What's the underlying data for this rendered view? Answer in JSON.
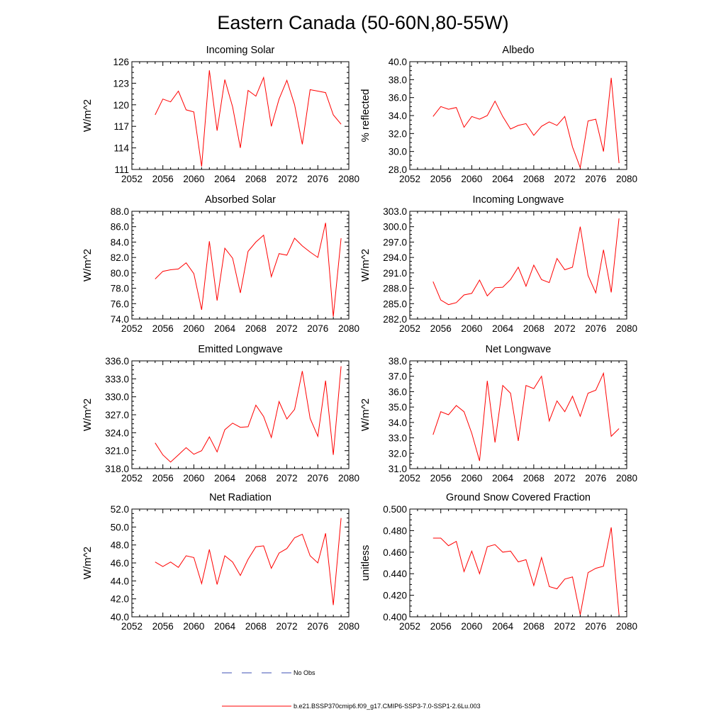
{
  "figure": {
    "title": "Eastern Canada (50-60N,80-55W)"
  },
  "colors": {
    "series": "#ff0000",
    "no_obs": "#3f51b5",
    "axis": "#000000"
  },
  "legend": {
    "entries": [
      {
        "label": "No Obs",
        "style": "dashed",
        "color": "#3f51b5"
      },
      {
        "label": "b.e21.BSSP370cmip6.f09_g17.CMIP6-SSP3-7.0-SSP1-2.6Lu.003",
        "style": "solid",
        "color": "#ff0000"
      }
    ]
  },
  "chart_data": [
    {
      "type": "line",
      "title": "Incoming Solar",
      "ylabel": "W/m^2",
      "xlim": [
        2052,
        2080
      ],
      "ylim": [
        111,
        126
      ],
      "x_ticks": [
        2052,
        2056,
        2060,
        2064,
        2068,
        2072,
        2076,
        2080
      ],
      "x_tick_labels": [
        "2052",
        "2056",
        "2060",
        "2064",
        "2068",
        "2072",
        "2076",
        "2080"
      ],
      "y_ticks": [
        111,
        114,
        117,
        120,
        123,
        126
      ],
      "y_tick_labels": [
        "111",
        "114",
        "117",
        "120",
        "123",
        "126"
      ],
      "grid": false,
      "x": [
        2055,
        2056,
        2057,
        2058,
        2059,
        2060,
        2061,
        2062,
        2063,
        2064,
        2065,
        2066,
        2067,
        2068,
        2069,
        2070,
        2071,
        2072,
        2073,
        2074,
        2075,
        2076,
        2077,
        2078,
        2079
      ],
      "series": [
        {
          "values": [
            118.6,
            120.8,
            120.4,
            121.9,
            119.3,
            119.0,
            111.4,
            124.8,
            116.4,
            123.5,
            119.7,
            114.0,
            122.0,
            121.2,
            123.8,
            117.0,
            120.8,
            123.4,
            120.0,
            114.5,
            122.1,
            121.9,
            121.7,
            118.6,
            117.3
          ]
        }
      ]
    },
    {
      "type": "line",
      "title": "Albedo",
      "ylabel": "% reflected",
      "xlim": [
        2052,
        2080
      ],
      "ylim": [
        28.0,
        40.0
      ],
      "x_ticks": [
        2052,
        2056,
        2060,
        2064,
        2068,
        2072,
        2076,
        2080
      ],
      "x_tick_labels": [
        "2052",
        "2056",
        "2060",
        "2064",
        "2068",
        "2072",
        "2076",
        "2080"
      ],
      "y_ticks": [
        28,
        30,
        32,
        34,
        36,
        38,
        40
      ],
      "y_tick_labels": [
        "28.0",
        "30.0",
        "32.0",
        "34.0",
        "36.0",
        "38.0",
        "40.0"
      ],
      "grid": false,
      "x": [
        2055,
        2056,
        2057,
        2058,
        2059,
        2060,
        2061,
        2062,
        2063,
        2064,
        2065,
        2066,
        2067,
        2068,
        2069,
        2070,
        2071,
        2072,
        2073,
        2074,
        2075,
        2076,
        2077,
        2078,
        2079
      ],
      "series": [
        {
          "values": [
            33.9,
            35.0,
            34.7,
            34.9,
            32.7,
            33.9,
            33.6,
            34.0,
            35.6,
            33.9,
            32.5,
            32.9,
            33.1,
            31.8,
            32.8,
            33.3,
            32.9,
            33.9,
            30.5,
            28.2,
            33.4,
            33.6,
            30.0,
            38.2,
            28.7
          ]
        }
      ]
    },
    {
      "type": "line",
      "title": "Absorbed Solar",
      "ylabel": "W/m^2",
      "xlim": [
        2052,
        2080
      ],
      "ylim": [
        74.0,
        88.0
      ],
      "x_ticks": [
        2052,
        2056,
        2060,
        2064,
        2068,
        2072,
        2076,
        2080
      ],
      "x_tick_labels": [
        "2052",
        "2056",
        "2060",
        "2064",
        "2068",
        "2072",
        "2076",
        "2080"
      ],
      "y_ticks": [
        74,
        76,
        78,
        80,
        82,
        84,
        86,
        88
      ],
      "y_tick_labels": [
        "74.0",
        "76.0",
        "78.0",
        "80.0",
        "82.0",
        "84.0",
        "86.0",
        "88.0"
      ],
      "grid": false,
      "x": [
        2055,
        2056,
        2057,
        2058,
        2059,
        2060,
        2061,
        2062,
        2063,
        2064,
        2065,
        2066,
        2067,
        2068,
        2069,
        2070,
        2071,
        2072,
        2073,
        2074,
        2075,
        2076,
        2077,
        2078,
        2079
      ],
      "series": [
        {
          "values": [
            79.2,
            80.2,
            80.4,
            80.5,
            81.3,
            79.9,
            75.2,
            84.1,
            76.4,
            83.2,
            81.9,
            77.4,
            82.8,
            84.0,
            84.9,
            79.5,
            82.5,
            82.3,
            84.5,
            83.5,
            82.7,
            82.0,
            86.5,
            74.3,
            84.5
          ]
        }
      ]
    },
    {
      "type": "line",
      "title": "Incoming Longwave",
      "ylabel": "W/m^2",
      "xlim": [
        2052,
        2080
      ],
      "ylim": [
        282.0,
        303.0
      ],
      "x_ticks": [
        2052,
        2056,
        2060,
        2064,
        2068,
        2072,
        2076,
        2080
      ],
      "x_tick_labels": [
        "2052",
        "2056",
        "2060",
        "2064",
        "2068",
        "2072",
        "2076",
        "2080"
      ],
      "y_ticks": [
        282,
        285,
        288,
        291,
        294,
        297,
        300,
        303
      ],
      "y_tick_labels": [
        "282.0",
        "285.0",
        "288.0",
        "291.0",
        "294.0",
        "297.0",
        "300.0",
        "303.0"
      ],
      "grid": false,
      "x": [
        2055,
        2056,
        2057,
        2058,
        2059,
        2060,
        2061,
        2062,
        2063,
        2064,
        2065,
        2066,
        2067,
        2068,
        2069,
        2070,
        2071,
        2072,
        2073,
        2074,
        2075,
        2076,
        2077,
        2078,
        2079
      ],
      "series": [
        {
          "values": [
            289.3,
            285.7,
            284.8,
            285.2,
            286.7,
            287.0,
            289.6,
            286.5,
            288.1,
            288.2,
            289.7,
            292.1,
            288.4,
            292.5,
            289.7,
            289.1,
            293.8,
            291.6,
            292.1,
            300.0,
            290.5,
            287.1,
            295.5,
            287.2,
            301.6
          ]
        }
      ]
    },
    {
      "type": "line",
      "title": "Emitted Longwave",
      "ylabel": "W/m^2",
      "xlim": [
        2052,
        2080
      ],
      "ylim": [
        318.0,
        336.0
      ],
      "x_ticks": [
        2052,
        2056,
        2060,
        2064,
        2068,
        2072,
        2076,
        2080
      ],
      "x_tick_labels": [
        "2052",
        "2056",
        "2060",
        "2064",
        "2068",
        "2072",
        "2076",
        "2080"
      ],
      "y_ticks": [
        318,
        321,
        324,
        327,
        330,
        333,
        336
      ],
      "y_tick_labels": [
        "318.0",
        "321.0",
        "324.0",
        "327.0",
        "330.0",
        "333.0",
        "336.0"
      ],
      "grid": false,
      "x": [
        2055,
        2056,
        2057,
        2058,
        2059,
        2060,
        2061,
        2062,
        2063,
        2064,
        2065,
        2066,
        2067,
        2068,
        2069,
        2070,
        2071,
        2072,
        2073,
        2074,
        2075,
        2076,
        2077,
        2078,
        2079
      ],
      "series": [
        {
          "values": [
            322.3,
            320.3,
            319.1,
            320.3,
            321.5,
            320.4,
            321.0,
            323.3,
            320.8,
            324.5,
            325.6,
            324.9,
            325.0,
            328.6,
            326.7,
            323.2,
            329.2,
            326.3,
            327.9,
            334.3,
            326.4,
            323.4,
            332.7,
            320.3,
            335.1
          ]
        }
      ]
    },
    {
      "type": "line",
      "title": "Net Longwave",
      "ylabel": "W/m^2",
      "xlim": [
        2052,
        2080
      ],
      "ylim": [
        31.0,
        38.0
      ],
      "x_ticks": [
        2052,
        2056,
        2060,
        2064,
        2068,
        2072,
        2076,
        2080
      ],
      "x_tick_labels": [
        "2052",
        "2056",
        "2060",
        "2064",
        "2068",
        "2072",
        "2076",
        "2080"
      ],
      "y_ticks": [
        31,
        32,
        33,
        34,
        35,
        36,
        37,
        38
      ],
      "y_tick_labels": [
        "31.0",
        "32.0",
        "33.0",
        "34.0",
        "35.0",
        "36.0",
        "37.0",
        "38.0"
      ],
      "grid": false,
      "x": [
        2055,
        2056,
        2057,
        2058,
        2059,
        2060,
        2061,
        2062,
        2063,
        2064,
        2065,
        2066,
        2067,
        2068,
        2069,
        2070,
        2071,
        2072,
        2073,
        2074,
        2075,
        2076,
        2077,
        2078,
        2079
      ],
      "series": [
        {
          "values": [
            33.2,
            34.7,
            34.5,
            35.1,
            34.7,
            33.3,
            31.5,
            36.7,
            32.7,
            36.4,
            35.9,
            32.8,
            36.4,
            36.2,
            37.0,
            34.1,
            35.4,
            34.7,
            35.7,
            34.4,
            35.9,
            36.1,
            37.2,
            33.1,
            33.6
          ]
        }
      ]
    },
    {
      "type": "line",
      "title": "Net Radiation",
      "ylabel": "W/m^2",
      "xlim": [
        2052,
        2080
      ],
      "ylim": [
        40.0,
        52.0
      ],
      "x_ticks": [
        2052,
        2056,
        2060,
        2064,
        2068,
        2072,
        2076,
        2080
      ],
      "x_tick_labels": [
        "2052",
        "2056",
        "2060",
        "2064",
        "2068",
        "2072",
        "2076",
        "2080"
      ],
      "y_ticks": [
        40,
        42,
        44,
        46,
        48,
        50,
        52
      ],
      "y_tick_labels": [
        "40.0",
        "42.0",
        "44.0",
        "46.0",
        "48.0",
        "50.0",
        "52.0"
      ],
      "grid": false,
      "x": [
        2055,
        2056,
        2057,
        2058,
        2059,
        2060,
        2061,
        2062,
        2063,
        2064,
        2065,
        2066,
        2067,
        2068,
        2069,
        2070,
        2071,
        2072,
        2073,
        2074,
        2075,
        2076,
        2077,
        2078,
        2079
      ],
      "series": [
        {
          "values": [
            46.1,
            45.6,
            46.1,
            45.5,
            46.8,
            46.6,
            43.7,
            47.5,
            43.6,
            46.8,
            46.1,
            44.6,
            46.4,
            47.8,
            47.9,
            45.4,
            47.1,
            47.6,
            48.8,
            49.2,
            46.8,
            46.0,
            49.3,
            41.3,
            51.0
          ]
        }
      ]
    },
    {
      "type": "line",
      "title": "Ground Snow Covered Fraction",
      "ylabel": "unitless",
      "xlim": [
        2052,
        2080
      ],
      "ylim": [
        0.4,
        0.5
      ],
      "x_ticks": [
        2052,
        2056,
        2060,
        2064,
        2068,
        2072,
        2076,
        2080
      ],
      "x_tick_labels": [
        "2052",
        "2056",
        "2060",
        "2064",
        "2068",
        "2072",
        "2076",
        "2080"
      ],
      "y_ticks": [
        0.4,
        0.42,
        0.44,
        0.46,
        0.48,
        0.5
      ],
      "y_tick_labels": [
        "0.400",
        "0.420",
        "0.440",
        "0.460",
        "0.480",
        "0.500"
      ],
      "grid": false,
      "x": [
        2055,
        2056,
        2057,
        2058,
        2059,
        2060,
        2061,
        2062,
        2063,
        2064,
        2065,
        2066,
        2067,
        2068,
        2069,
        2070,
        2071,
        2072,
        2073,
        2074,
        2075,
        2076,
        2077,
        2078,
        2079
      ],
      "series": [
        {
          "values": [
            0.473,
            0.473,
            0.466,
            0.47,
            0.442,
            0.461,
            0.44,
            0.465,
            0.467,
            0.46,
            0.461,
            0.451,
            0.453,
            0.429,
            0.455,
            0.428,
            0.426,
            0.435,
            0.437,
            0.402,
            0.441,
            0.445,
            0.447,
            0.483,
            0.402
          ]
        }
      ]
    }
  ]
}
